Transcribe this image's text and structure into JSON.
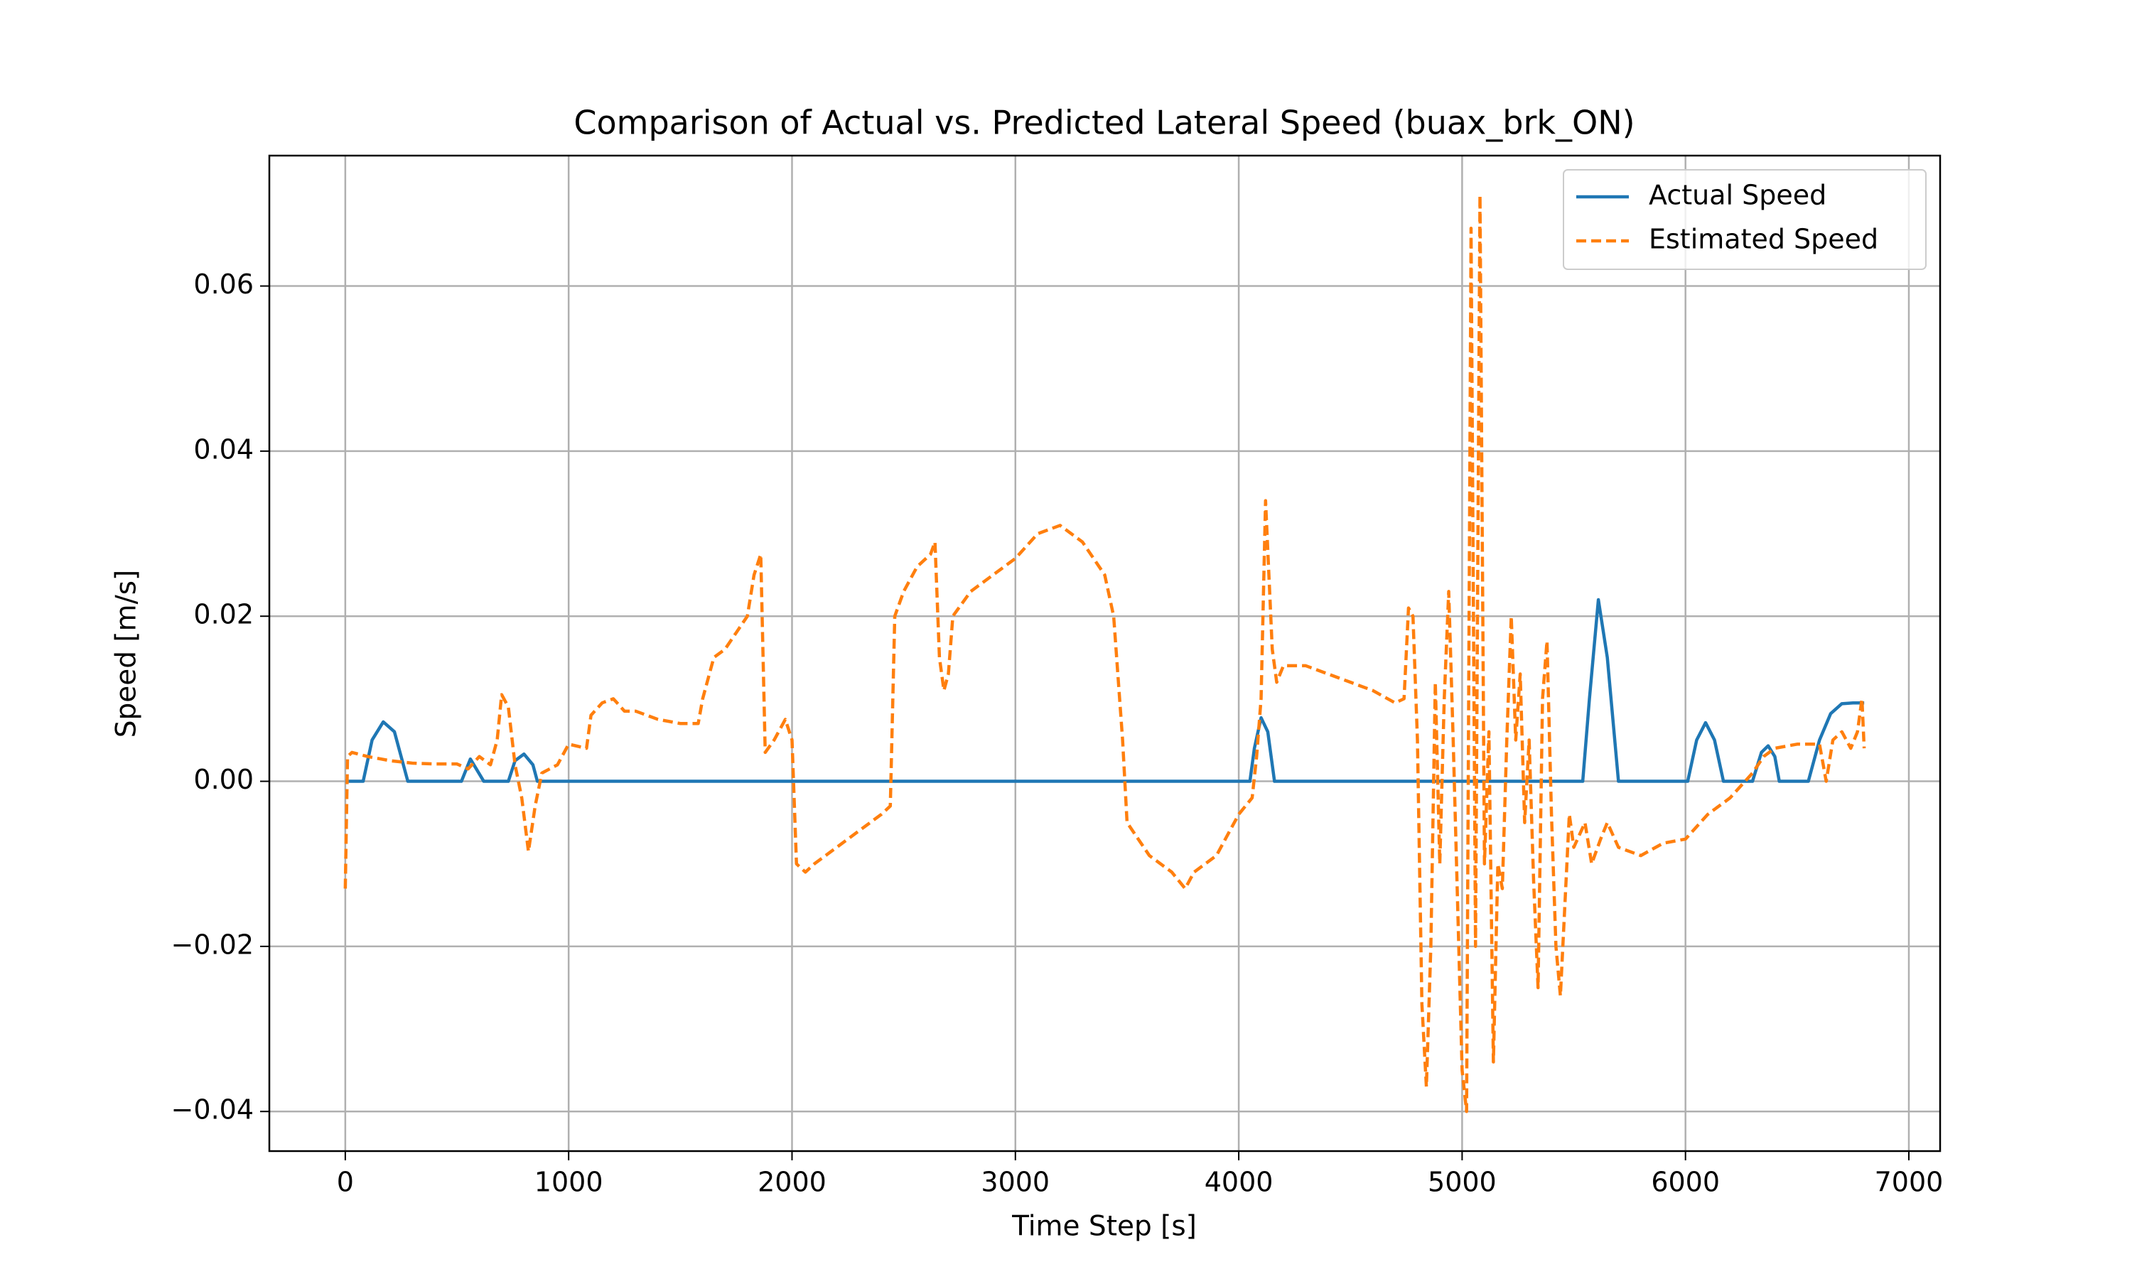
{
  "chart_data": {
    "type": "line",
    "title": "Comparison of Actual vs. Predicted Lateral Speed (buax_brk_ON)",
    "x_label": "Time Step [s]",
    "y_label": "Speed [m/s]",
    "xlim": [
      -340,
      7140
    ],
    "ylim": [
      -0.0448,
      0.0758
    ],
    "xticks": [
      0,
      1000,
      2000,
      3000,
      4000,
      5000,
      6000,
      7000
    ],
    "yticks": [
      {
        "value": -0.04,
        "label": "−0.04"
      },
      {
        "value": -0.02,
        "label": "−0.02"
      },
      {
        "value": 0,
        "label": "0.00"
      },
      0.02,
      0.04,
      0.06
    ],
    "grid": true,
    "legend": "upper right",
    "series": [
      {
        "name": "Actual Speed",
        "color": "#1f77b4",
        "linestyle": "solid",
        "x": [
          0,
          80,
          120,
          170,
          220,
          280,
          520,
          560,
          620,
          730,
          760,
          800,
          840,
          860,
          4050,
          4070,
          4100,
          4130,
          4160,
          5540,
          5570,
          5610,
          5650,
          5700,
          6010,
          6050,
          6090,
          6130,
          6170,
          6300,
          6340,
          6370,
          6400,
          6420,
          6550,
          6600,
          6650,
          6700,
          6750,
          6800
        ],
        "values": [
          0,
          0,
          0.005,
          0.0072,
          0.006,
          0,
          0,
          0.0027,
          0,
          0,
          0.0025,
          0.0033,
          0.002,
          0,
          0,
          0.004,
          0.0077,
          0.006,
          0,
          0,
          0.01,
          0.022,
          0.015,
          0,
          0,
          0.005,
          0.0071,
          0.005,
          0,
          0,
          0.0035,
          0.0043,
          0.003,
          0,
          0,
          0.005,
          0.0082,
          0.0094,
          0.0095,
          0.0095
        ]
      },
      {
        "name": "Estimated Speed",
        "color": "#ff7f0e",
        "linestyle": "dashed",
        "x": [
          0,
          10,
          30,
          100,
          200,
          300,
          400,
          500,
          550,
          600,
          650,
          680,
          700,
          730,
          760,
          790,
          820,
          850,
          880,
          950,
          1000,
          1080,
          1100,
          1150,
          1200,
          1250,
          1300,
          1400,
          1500,
          1580,
          1600,
          1650,
          1700,
          1750,
          1800,
          1830,
          1860,
          1880,
          1920,
          1970,
          2000,
          2020,
          2060,
          2100,
          2200,
          2300,
          2400,
          2440,
          2460,
          2500,
          2560,
          2620,
          2640,
          2660,
          2680,
          2700,
          2720,
          2800,
          2900,
          3000,
          3100,
          3200,
          3300,
          3400,
          3440,
          3480,
          3500,
          3550,
          3600,
          3700,
          3760,
          3800,
          3900,
          4000,
          4060,
          4080,
          4100,
          4120,
          4150,
          4170,
          4200,
          4300,
          4400,
          4500,
          4600,
          4700,
          4740,
          4760,
          4780,
          4800,
          4820,
          4840,
          4860,
          4880,
          4900,
          4920,
          4940,
          4960,
          4980,
          5000,
          5020,
          5040,
          5060,
          5080,
          5100,
          5120,
          5140,
          5160,
          5180,
          5200,
          5220,
          5240,
          5260,
          5280,
          5300,
          5320,
          5340,
          5360,
          5380,
          5400,
          5420,
          5440,
          5460,
          5480,
          5500,
          5550,
          5580,
          5620,
          5650,
          5700,
          5800,
          5900,
          6000,
          6100,
          6200,
          6300,
          6350,
          6400,
          6500,
          6600,
          6630,
          6660,
          6700,
          6740,
          6770,
          6790,
          6800
        ],
        "values": [
          -0.013,
          0.003,
          0.0035,
          0.003,
          0.0025,
          0.0022,
          0.0021,
          0.0021,
          0.0015,
          0.003,
          0.002,
          0.005,
          0.0105,
          0.009,
          0.002,
          -0.002,
          -0.0085,
          -0.003,
          0.001,
          0.002,
          0.0045,
          0.004,
          0.008,
          0.0095,
          0.01,
          0.0085,
          0.0085,
          0.0075,
          0.007,
          0.007,
          0.01,
          0.015,
          0.016,
          0.018,
          0.02,
          0.025,
          0.0275,
          0.0035,
          0.005,
          0.0075,
          0.005,
          -0.01,
          -0.011,
          -0.01,
          -0.008,
          -0.006,
          -0.004,
          -0.003,
          0.02,
          0.023,
          0.026,
          0.0275,
          0.029,
          0.015,
          0.011,
          0.013,
          0.02,
          0.023,
          0.025,
          0.027,
          0.03,
          0.031,
          0.029,
          0.025,
          0.02,
          0.005,
          -0.005,
          -0.007,
          -0.009,
          -0.011,
          -0.013,
          -0.011,
          -0.009,
          -0.004,
          -0.002,
          0.003,
          0.01,
          0.034,
          0.016,
          0.012,
          0.014,
          0.014,
          0.013,
          0.012,
          0.011,
          0.0095,
          0.01,
          0.021,
          0.02,
          0.005,
          -0.027,
          -0.037,
          -0.02,
          0.012,
          -0.01,
          0.01,
          0.023,
          0.005,
          -0.015,
          -0.035,
          -0.04,
          0.067,
          -0.02,
          0.071,
          -0.01,
          0.006,
          -0.034,
          -0.01,
          -0.013,
          0.005,
          0.02,
          0.005,
          0.013,
          -0.005,
          0.005,
          -0.012,
          -0.025,
          0.01,
          0.017,
          -0.004,
          -0.02,
          -0.026,
          -0.015,
          -0.004,
          -0.008,
          -0.005,
          -0.01,
          -0.007,
          -0.005,
          -0.008,
          -0.009,
          -0.0075,
          -0.007,
          -0.004,
          -0.002,
          0.001,
          0.003,
          0.004,
          0.0045,
          0.0045,
          0,
          0.005,
          0.006,
          0.004,
          0.006,
          0.01,
          0.004
        ]
      }
    ]
  }
}
